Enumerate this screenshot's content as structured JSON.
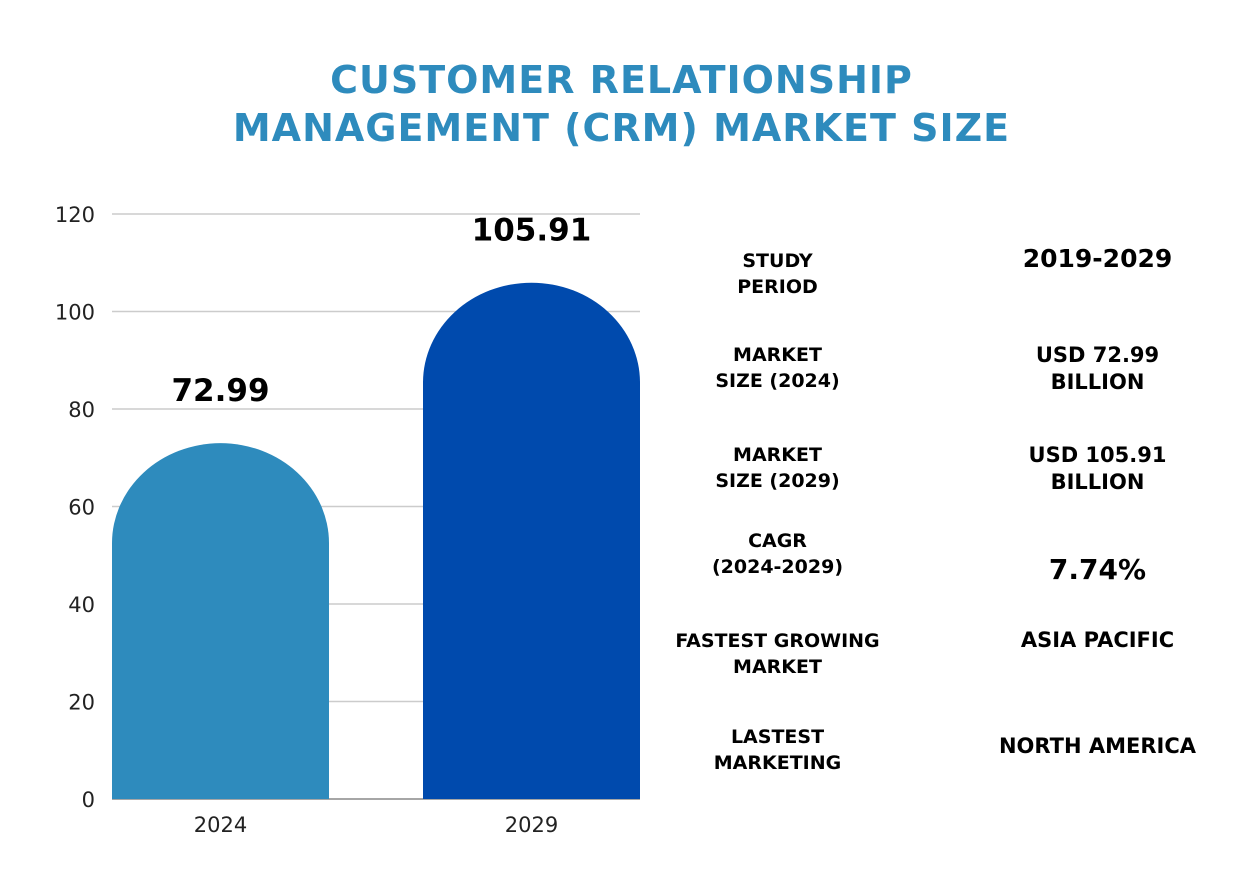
{
  "title_lines": [
    "CUSTOMER RELATIONSHIP",
    "MANAGEMENT (CRM) MARKET SIZE"
  ],
  "colors": {
    "title": "#2e8bbd",
    "bar_2024": "#2e8bbd",
    "bar_2029": "#004aad",
    "grid": "#cccccc"
  },
  "chart_data": {
    "type": "bar",
    "title": "CUSTOMER RELATIONSHIP MANAGEMENT (CRM) MARKET SIZE",
    "categories": [
      "2024",
      "2029"
    ],
    "values": [
      72.99,
      105.91
    ],
    "data_labels": [
      "72.99",
      "105.91"
    ],
    "ylim": [
      0,
      120
    ],
    "yticks": [
      0,
      20,
      40,
      60,
      80,
      100,
      120
    ],
    "grid": true,
    "bar_shape": "rounded-top"
  },
  "stats": [
    {
      "label": [
        "STUDY",
        "PERIOD"
      ],
      "value": [
        "2019-2029"
      ]
    },
    {
      "label": [
        "MARKET",
        "SIZE (2024)"
      ],
      "value": [
        "USD 72.99",
        "BILLION"
      ]
    },
    {
      "label": [
        "MARKET",
        "SIZE (2029)"
      ],
      "value": [
        "USD 105.91",
        "BILLION"
      ]
    },
    {
      "label": [
        "CAGR",
        "(2024-2029)"
      ],
      "value": [
        "7.74%"
      ]
    },
    {
      "label": [
        "FASTEST GROWING",
        "MARKET"
      ],
      "value": [
        "ASIA PACIFIC"
      ]
    },
    {
      "label": [
        "LASTEST",
        "MARKETING"
      ],
      "value": [
        "NORTH AMERICA"
      ]
    }
  ]
}
